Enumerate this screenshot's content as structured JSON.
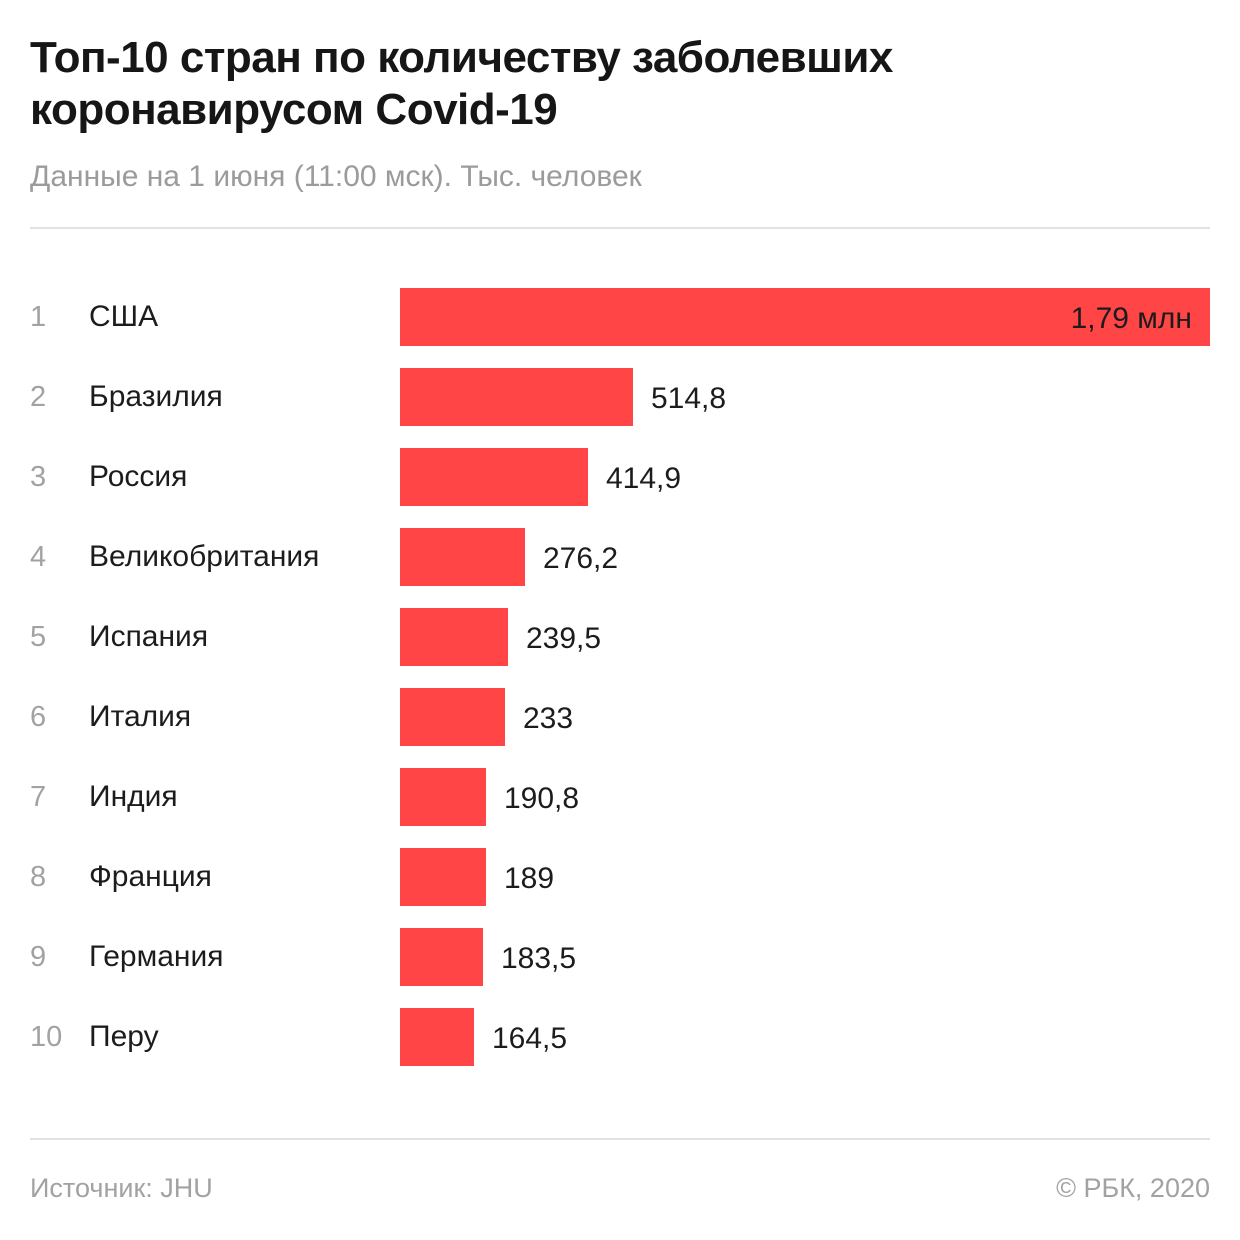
{
  "header": {
    "title": "Топ-10 стран по количеству заболевших коронавирусом Covid-19",
    "subtitle": "Данные на 1 июня (11:00 мск). Тыс. человек"
  },
  "footer": {
    "source": "Источник: JHU",
    "copyright": "© РБК, 2020"
  },
  "colors": {
    "bar": "#ff4545"
  },
  "chart_data": {
    "type": "bar",
    "orientation": "horizontal",
    "title": "Топ-10 стран по количеству заболевших коронавирусом Covid-19",
    "subtitle": "Данные на 1 июня (11:00 мск). Тыс. человек",
    "xlabel": "",
    "ylabel": "",
    "grid": false,
    "unit": "Тыс. человек",
    "xlim": [
      0,
      1790
    ],
    "items": [
      {
        "rank": "1",
        "country": "США",
        "value": 1790,
        "label": "1,79 млн"
      },
      {
        "rank": "2",
        "country": "Бразилия",
        "value": 514.8,
        "label": "514,8"
      },
      {
        "rank": "3",
        "country": "Россия",
        "value": 414.9,
        "label": "414,9"
      },
      {
        "rank": "4",
        "country": "Великобритания",
        "value": 276.2,
        "label": "276,2"
      },
      {
        "rank": "5",
        "country": "Испания",
        "value": 239.5,
        "label": "239,5"
      },
      {
        "rank": "6",
        "country": "Италия",
        "value": 233,
        "label": "233"
      },
      {
        "rank": "7",
        "country": "Индия",
        "value": 190.8,
        "label": "190,8"
      },
      {
        "rank": "8",
        "country": "Франция",
        "value": 189,
        "label": "189"
      },
      {
        "rank": "9",
        "country": "Германия",
        "value": 183.5,
        "label": "183,5"
      },
      {
        "rank": "10",
        "country": "Перу",
        "value": 164.5,
        "label": "164,5"
      }
    ]
  }
}
